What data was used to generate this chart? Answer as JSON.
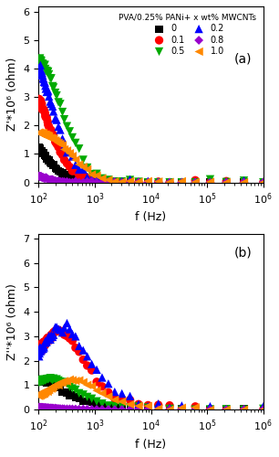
{
  "title_a": "(a)",
  "title_b": "(b)",
  "xlabel": "f (Hz)",
  "ylabel_a": "Z'*10⁶ (ohm)",
  "ylabel_b": "Z''*10⁶ (ohm)",
  "legend_title": "PVA/0.25% PANi+ x wt% MWCNTs",
  "series": [
    {
      "label": "0",
      "color": "#000000",
      "marker": "s",
      "ms": 3.5
    },
    {
      "label": "0.1",
      "color": "#ff0000",
      "marker": "o",
      "ms": 4
    },
    {
      "label": "0.5",
      "color": "#00aa00",
      "marker": "v",
      "ms": 4
    },
    {
      "label": "0.2",
      "color": "#0000ff",
      "marker": "^",
      "ms": 4
    },
    {
      "label": "0.8",
      "color": "#9900cc",
      "marker": "D",
      "ms": 3
    },
    {
      "label": "1.0",
      "color": "#ff8800",
      "marker": "<",
      "ms": 4
    }
  ],
  "xmin": 100,
  "xmax": 1000000,
  "ya_max": 6.2,
  "yb_max": 7.2,
  "background": "#ffffff",
  "series_a": [
    {
      "label": "0",
      "R": 2550000.0,
      "tau": 0.0016
    },
    {
      "label": "0.1",
      "R": 4700000.0,
      "tau": 0.0012
    },
    {
      "label": "0.5",
      "R": 5000000.0,
      "tau": 0.0006
    },
    {
      "label": "0.2",
      "R": 5800000.0,
      "tau": 0.001
    },
    {
      "label": "0.8",
      "R": 1050000.0,
      "tau": 0.003
    },
    {
      "label": "1.0",
      "R": 1850000.0,
      "tau": 0.0004
    }
  ],
  "series_b": [
    {
      "label": "0",
      "R": 2400000.0,
      "tau": 0.0016
    },
    {
      "label": "0.1",
      "R": 6400000.0,
      "tau": 0.0007
    },
    {
      "label": "0.5",
      "R": 2500000.0,
      "tau": 0.001
    },
    {
      "label": "0.2",
      "R": 6800000.0,
      "tau": 0.0006
    },
    {
      "label": "0.8",
      "R": 350000.0,
      "tau": 0.005
    },
    {
      "label": "1.0",
      "R": 2450000.0,
      "tau": 0.0004
    }
  ]
}
